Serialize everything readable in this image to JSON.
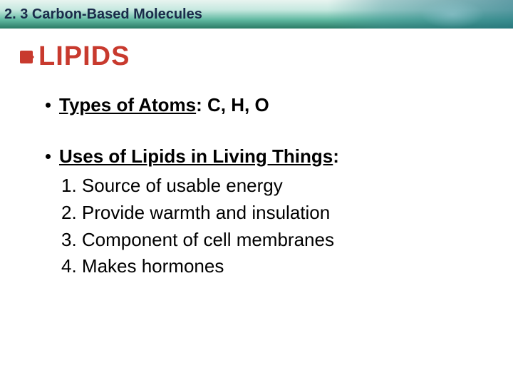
{
  "header": {
    "title": "2. 3 Carbon-Based Molecules",
    "bg_gradient": [
      "#e8f4f0",
      "#c5e8df",
      "#5fb8a0",
      "#2a7a65"
    ],
    "title_color": "#1a2b4a"
  },
  "slide": {
    "title": "LIPIDS",
    "title_color": "#c83a2e",
    "bullet_color": "#c83a2e",
    "atoms": {
      "label": "Types of Atoms",
      "value": ": C, H, O"
    },
    "uses": {
      "label": "Uses of Lipids in Living Things",
      "suffix": ":",
      "items": [
        "1. Source of usable energy",
        "2. Provide warmth and insulation",
        "3.  Component of cell membranes",
        "4.  Makes hormones"
      ]
    },
    "body_fontsize": 26,
    "body_color": "#000000"
  }
}
